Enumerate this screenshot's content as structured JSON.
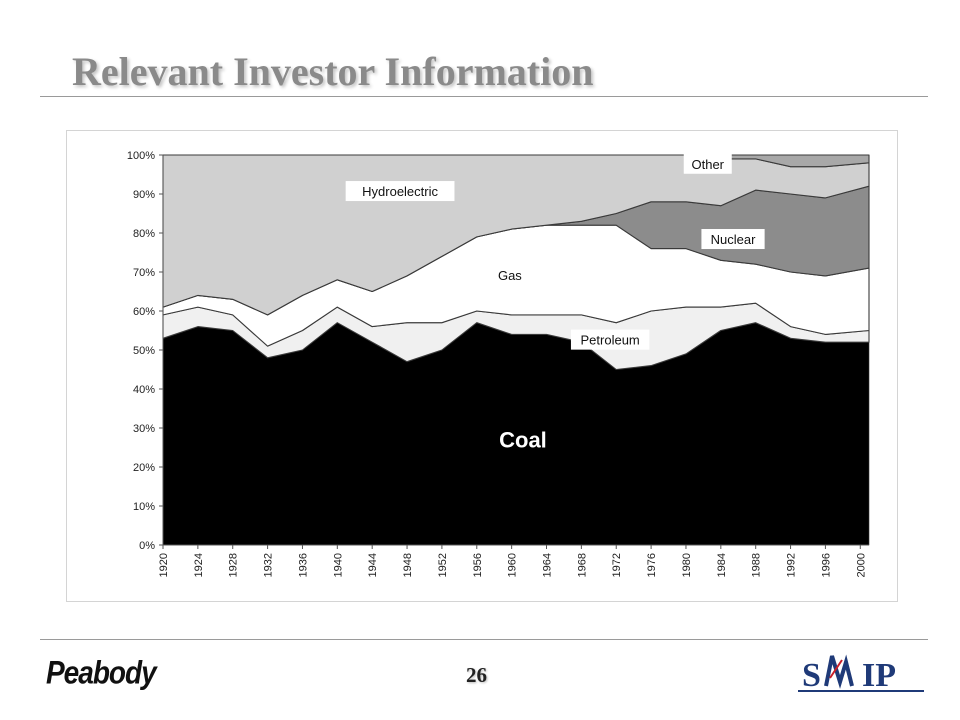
{
  "title": "Relevant Investor Information",
  "page_number": "26",
  "logos": {
    "left": "Peabody",
    "right": "SMIP"
  },
  "chart_data": {
    "type": "area",
    "stacked": true,
    "normalized": true,
    "y_tick_labels": [
      "0%",
      "10%",
      "20%",
      "30%",
      "40%",
      "50%",
      "60%",
      "70%",
      "80%",
      "90%",
      "100%"
    ],
    "ylim": [
      0,
      100
    ],
    "x_tick_labels": [
      "1920",
      "1924",
      "1928",
      "1932",
      "1936",
      "1940",
      "1944",
      "1948",
      "1952",
      "1956",
      "1960",
      "1964",
      "1968",
      "1972",
      "1976",
      "1980",
      "1984",
      "1988",
      "1992",
      "1996",
      "2000"
    ],
    "xlim": [
      1920,
      2001
    ],
    "x": [
      1920,
      1924,
      1928,
      1932,
      1936,
      1940,
      1944,
      1948,
      1952,
      1956,
      1960,
      1964,
      1968,
      1972,
      1976,
      1980,
      1984,
      1988,
      1992,
      1996,
      2001
    ],
    "series": [
      {
        "name": "Coal",
        "color": "#000000",
        "values": [
          53,
          56,
          55,
          48,
          50,
          57,
          52,
          47,
          50,
          57,
          54,
          54,
          52,
          45,
          46,
          49,
          55,
          57,
          53,
          52,
          52
        ]
      },
      {
        "name": "Petroleum",
        "color": "#f0f0f0",
        "values": [
          6,
          5,
          4,
          3,
          5,
          4,
          4,
          10,
          7,
          3,
          5,
          5,
          7,
          12,
          14,
          12,
          6,
          5,
          3,
          2,
          3
        ]
      },
      {
        "name": "Gas",
        "color": "#ffffff",
        "values": [
          2,
          3,
          4,
          8,
          9,
          7,
          9,
          12,
          17,
          19,
          22,
          23,
          23,
          25,
          16,
          15,
          12,
          10,
          14,
          15,
          16
        ]
      },
      {
        "name": "Nuclear",
        "color": "#8c8c8c",
        "values": [
          0,
          0,
          0,
          0,
          0,
          0,
          0,
          0,
          0,
          0,
          0,
          0,
          1,
          3,
          12,
          12,
          14,
          19,
          20,
          20,
          21
        ]
      },
      {
        "name": "Hydroelectric",
        "color": "#d0d0d0",
        "values": [
          39,
          36,
          37,
          41,
          36,
          32,
          35,
          31,
          26,
          21,
          19,
          18,
          17,
          15,
          12,
          12,
          12,
          8,
          7,
          8,
          6
        ]
      },
      {
        "name": "Other",
        "color": "#a8a8a8",
        "values": [
          0,
          0,
          0,
          0,
          0,
          0,
          0,
          0,
          0,
          0,
          0,
          0,
          0,
          0,
          0,
          0,
          1,
          1,
          3,
          3,
          2
        ]
      }
    ]
  }
}
